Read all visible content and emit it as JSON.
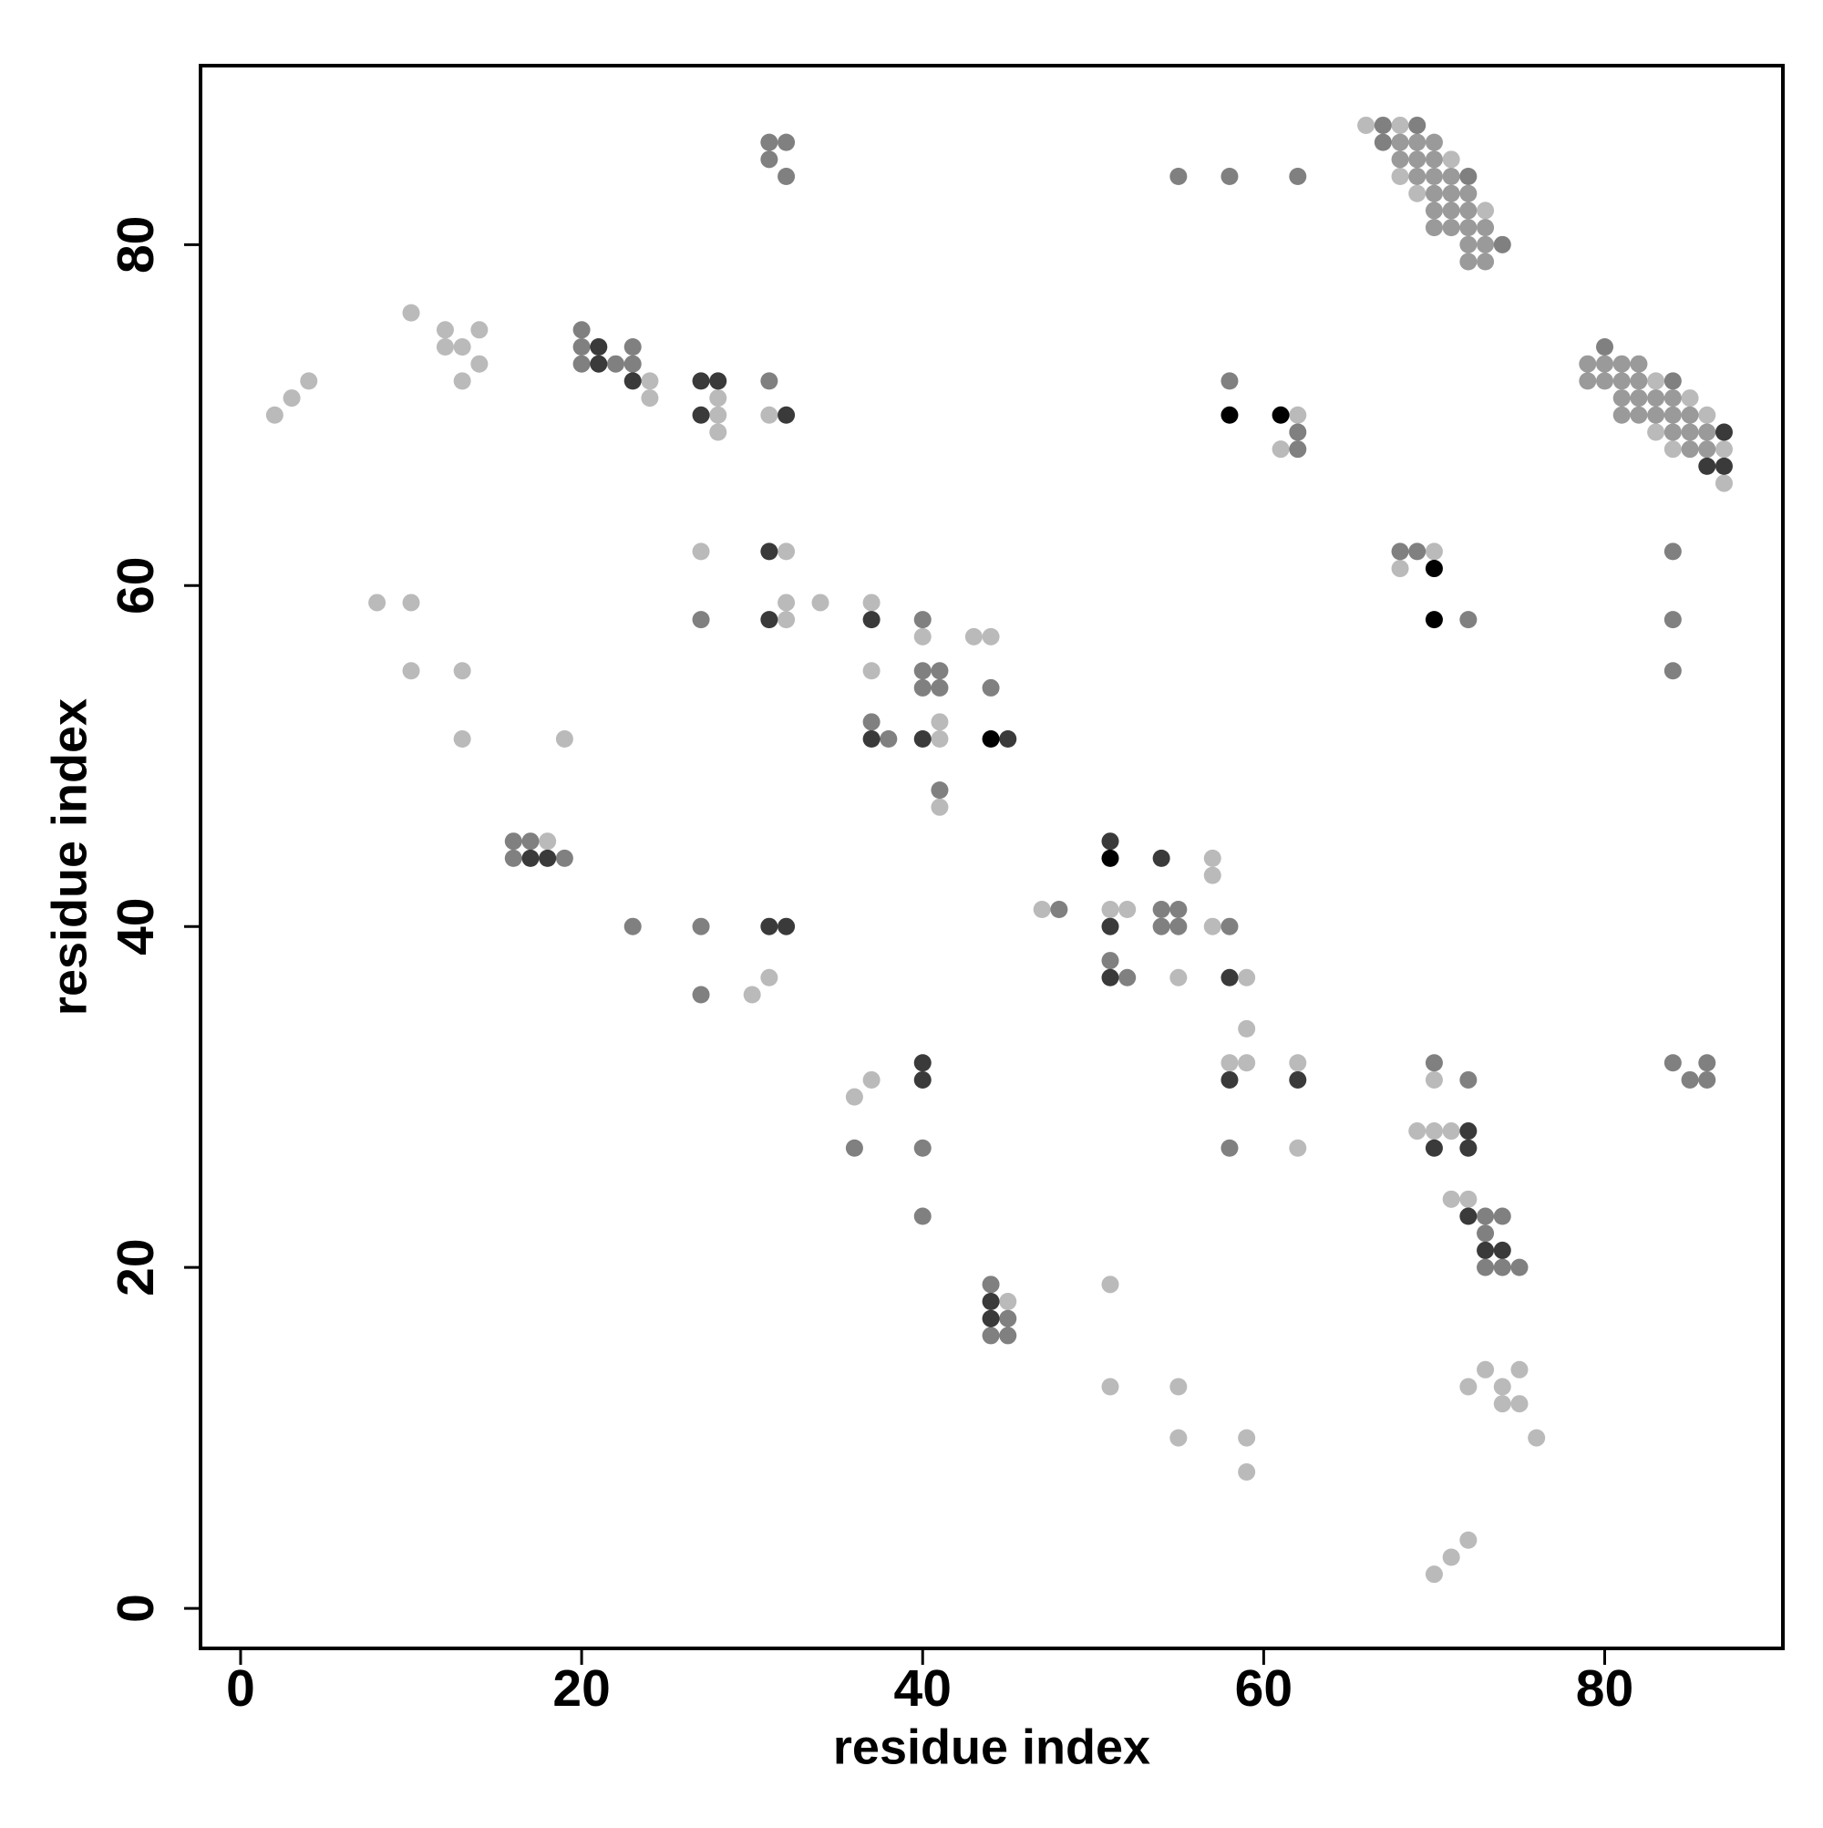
{
  "chart_data": {
    "type": "scatter",
    "x_label": "residue index",
    "y_label": "residue index",
    "xlim": [
      -2.35,
      90.45
    ],
    "ylim": [
      -2.35,
      90.5
    ],
    "xticks": [
      0,
      20,
      40,
      60,
      80
    ],
    "yticks": [
      0,
      20,
      40,
      60,
      80
    ],
    "grid": false,
    "series": [
      {
        "color": "#bababa",
        "x": [
          66,
          68,
          71,
          68,
          69,
          73,
          10,
          12,
          14,
          12,
          13,
          14,
          4,
          13,
          24,
          83,
          3,
          24,
          28,
          85,
          2,
          28,
          31,
          62,
          86,
          28,
          83,
          61,
          84,
          87,
          87,
          27,
          32,
          70,
          68,
          8,
          10,
          32,
          34,
          37,
          32,
          40,
          43,
          44,
          10,
          13,
          37,
          41,
          13,
          19,
          41,
          41,
          18,
          57,
          57,
          47,
          51,
          52,
          57,
          31,
          55,
          59,
          30,
          59,
          58,
          59,
          62,
          37,
          70,
          36,
          69,
          70,
          71,
          62,
          71,
          72,
          51,
          45,
          73,
          75,
          51,
          55,
          72,
          74,
          74,
          75,
          55,
          59,
          76,
          59,
          72,
          71,
          70
        ],
        "y": [
          87,
          87,
          85,
          84,
          83,
          82,
          76,
          75,
          75,
          74,
          74,
          73,
          72,
          72,
          72,
          72,
          71,
          71,
          71,
          71,
          70,
          70,
          70,
          70,
          70,
          69,
          69,
          68,
          68,
          68,
          66,
          62,
          62,
          62,
          61,
          59,
          59,
          59,
          59,
          59,
          58,
          57,
          57,
          57,
          55,
          55,
          55,
          52,
          51,
          51,
          51,
          47,
          45,
          44,
          43,
          41,
          41,
          41,
          40,
          37,
          37,
          37,
          36,
          34,
          32,
          32,
          32,
          31,
          31,
          30,
          28,
          28,
          28,
          27,
          24,
          24,
          19,
          18,
          14,
          14,
          13,
          13,
          13,
          13,
          12,
          12,
          10,
          10,
          10,
          8,
          4,
          3,
          2
        ]
      },
      {
        "color": "#9a9a9a",
        "x": [
          68,
          69,
          70,
          68,
          69,
          70,
          69,
          70,
          71,
          70,
          71,
          72,
          70,
          71,
          72,
          70,
          71,
          72,
          73,
          72,
          73,
          72,
          73,
          79,
          80,
          81,
          82,
          79,
          80,
          81,
          82,
          81,
          82,
          83,
          84,
          81,
          82,
          83,
          84,
          85,
          84,
          85,
          86,
          85,
          86
        ],
        "y": [
          86,
          86,
          86,
          85,
          85,
          85,
          84,
          84,
          84,
          83,
          83,
          83,
          82,
          82,
          82,
          81,
          81,
          81,
          81,
          80,
          80,
          79,
          79,
          73,
          73,
          73,
          73,
          72,
          72,
          72,
          72,
          71,
          71,
          71,
          71,
          70,
          70,
          70,
          70,
          70,
          69,
          69,
          69,
          68,
          68
        ]
      },
      {
        "color": "#808080",
        "x": [
          67,
          69,
          31,
          32,
          67,
          31,
          32,
          55,
          58,
          62,
          72,
          74,
          20,
          20,
          23,
          80,
          20,
          22,
          23,
          31,
          58,
          84,
          62,
          62,
          68,
          69,
          84,
          27,
          40,
          72,
          84,
          40,
          41,
          84,
          40,
          41,
          44,
          37,
          38,
          41,
          16,
          17,
          16,
          19,
          48,
          54,
          55,
          23,
          27,
          54,
          55,
          58,
          51,
          52,
          27,
          70,
          84,
          86,
          72,
          85,
          86,
          36,
          40,
          58,
          40,
          73,
          74,
          73,
          73,
          74,
          75,
          44,
          45,
          44,
          45
        ],
        "y": [
          87,
          87,
          86,
          86,
          86,
          85,
          84,
          84,
          84,
          84,
          84,
          80,
          75,
          74,
          74,
          74,
          73,
          73,
          73,
          72,
          72,
          72,
          69,
          68,
          62,
          62,
          62,
          58,
          58,
          58,
          58,
          55,
          55,
          55,
          54,
          54,
          54,
          52,
          51,
          48,
          45,
          45,
          44,
          44,
          41,
          41,
          41,
          40,
          40,
          40,
          40,
          40,
          38,
          37,
          36,
          32,
          32,
          32,
          31,
          31,
          31,
          27,
          27,
          27,
          23,
          23,
          23,
          22,
          20,
          20,
          20,
          19,
          17,
          16,
          16
        ]
      },
      {
        "color": "#3a3a3a",
        "x": [
          21,
          21,
          23,
          27,
          28,
          27,
          32,
          87,
          86,
          87,
          31,
          31,
          37,
          37,
          40,
          45,
          51,
          17,
          18,
          54,
          31,
          32,
          51,
          51,
          58,
          40,
          40,
          58,
          62,
          72,
          70,
          72,
          72,
          73,
          74,
          44,
          44
        ],
        "y": [
          74,
          73,
          72,
          72,
          72,
          70,
          70,
          69,
          67,
          67,
          62,
          58,
          58,
          51,
          51,
          51,
          45,
          44,
          44,
          44,
          40,
          40,
          40,
          37,
          37,
          32,
          31,
          31,
          31,
          28,
          27,
          27,
          23,
          21,
          21,
          18,
          17
        ]
      },
      {
        "color": "#000000",
        "x": [
          58,
          61,
          70,
          70,
          44,
          51
        ],
        "y": [
          70,
          70,
          61,
          58,
          51,
          44
        ]
      }
    ]
  }
}
